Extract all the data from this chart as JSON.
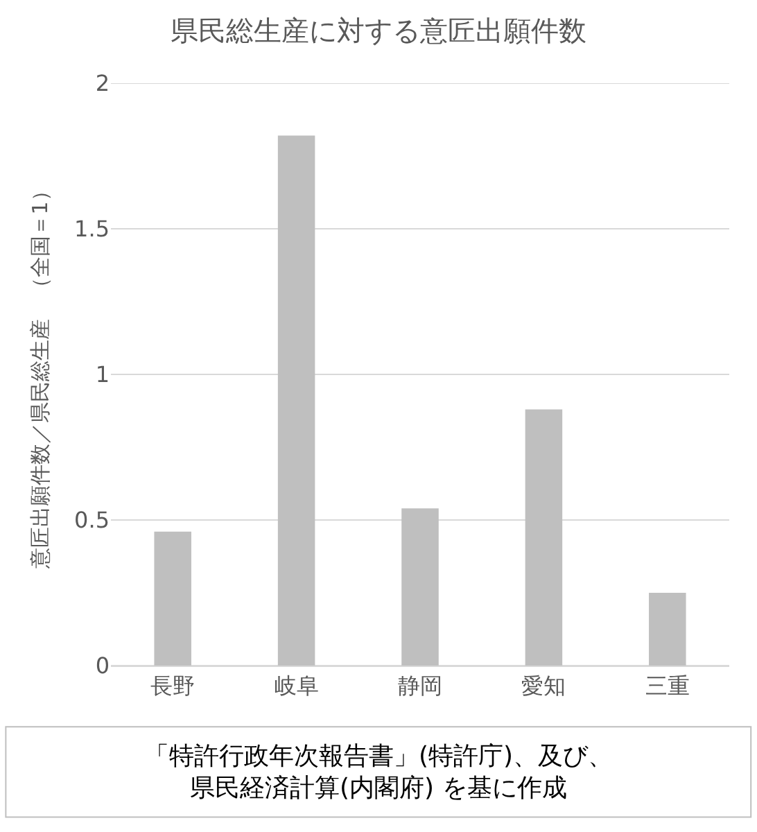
{
  "chart_data": {
    "type": "bar",
    "title": "県民総生産に対する意匠出願件数",
    "ylabel": "意匠出願件数／県民総生産　（全国＝1）",
    "categories": [
      "長野",
      "岐阜",
      "静岡",
      "愛知",
      "三重"
    ],
    "values": [
      0.46,
      1.82,
      0.54,
      0.88,
      0.25
    ],
    "color": "#bfbfbf",
    "ylim": [
      0,
      2
    ],
    "yticks": [
      0,
      {
        "value": 0.5,
        "label": "0.5"
      },
      1,
      {
        "value": 1.5,
        "label": "1.5"
      },
      2
    ],
    "grid": "y",
    "annotations": [
      "「特許行政年次報告書」(特許庁)、及び、",
      "県民経済計算(内閣府) を基に作成"
    ]
  }
}
